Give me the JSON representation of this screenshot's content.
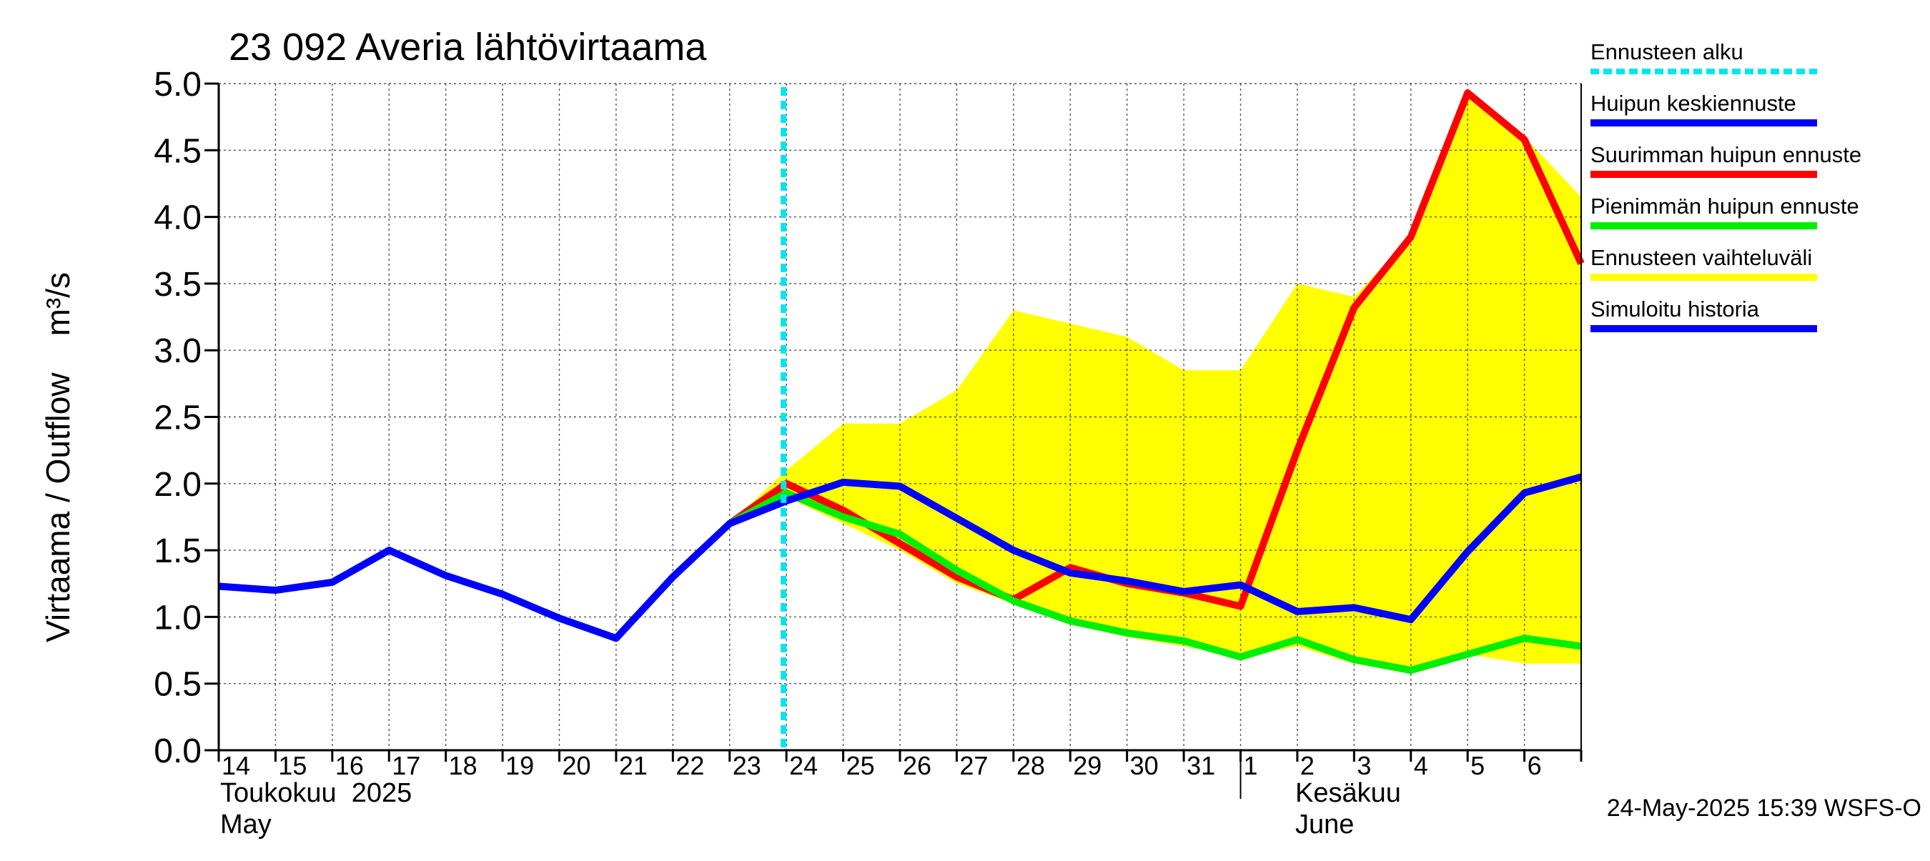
{
  "chart_data": {
    "type": "line",
    "title": "23 092 Averia lähtövirtaama",
    "ylabel": "Virtaama / Outflow    m³/s",
    "ylim": [
      0,
      5
    ],
    "yticks": [
      "0.0",
      "0.5",
      "1.0",
      "1.5",
      "2.0",
      "2.5",
      "3.0",
      "3.5",
      "4.0",
      "4.5",
      "5.0"
    ],
    "x_start": 0,
    "x_end": 24,
    "day_labels": [
      "14",
      "15",
      "16",
      "17",
      "18",
      "19",
      "20",
      "21",
      "22",
      "23",
      "24",
      "25",
      "26",
      "27",
      "28",
      "29",
      "30",
      "31",
      "1",
      "2",
      "3",
      "4",
      "5",
      "6"
    ],
    "month_labels": {
      "may_fi": "Toukokuu  2025",
      "may_en": "May",
      "june_fi": "Kesäkuu",
      "june_en": "June"
    },
    "month_boundary_x": 18,
    "forecast_start_x": 10,
    "grid": true,
    "series": [
      {
        "name": "Ennusteen vaihteluväli",
        "kind": "band",
        "color": "#ffff00",
        "x": [
          9,
          10,
          11,
          12,
          13,
          14,
          15,
          16,
          17,
          18,
          19,
          20,
          21,
          22,
          23,
          24
        ],
        "upper": [
          1.7,
          2.1,
          2.45,
          2.45,
          2.7,
          3.3,
          3.2,
          3.1,
          2.85,
          2.85,
          3.5,
          3.4,
          3.85,
          4.95,
          4.6,
          4.15
        ],
        "lower": [
          1.7,
          1.9,
          1.7,
          1.5,
          1.25,
          1.1,
          0.95,
          0.85,
          0.78,
          0.7,
          0.78,
          0.65,
          0.58,
          0.72,
          0.65,
          0.65
        ]
      },
      {
        "name": "Suurimman huipun ennuste",
        "kind": "line",
        "color": "#ff0000",
        "x": [
          9,
          10,
          11,
          12,
          13,
          14,
          15,
          16,
          17,
          18,
          19,
          20,
          21,
          22,
          23,
          24
        ],
        "values": [
          1.7,
          2.0,
          1.8,
          1.55,
          1.3,
          1.13,
          1.37,
          1.25,
          1.18,
          1.08,
          2.25,
          3.32,
          3.85,
          4.93,
          4.58,
          3.65
        ]
      },
      {
        "name": "Pienimmän huipun ennuste",
        "kind": "line",
        "color": "#00ee00",
        "x": [
          9,
          10,
          11,
          12,
          13,
          14,
          15,
          16,
          17,
          18,
          19,
          20,
          21,
          22,
          23,
          24
        ],
        "values": [
          1.7,
          1.93,
          1.75,
          1.62,
          1.35,
          1.12,
          0.97,
          0.88,
          0.82,
          0.7,
          0.83,
          0.68,
          0.6,
          0.72,
          0.84,
          0.78
        ]
      },
      {
        "name": "Huipun keskiennuste",
        "kind": "line",
        "color": "#0000ff",
        "x": [
          10,
          11,
          12,
          13,
          14,
          15,
          16,
          17,
          18,
          19,
          20,
          21,
          22,
          23,
          24
        ],
        "values": [
          1.87,
          2.01,
          1.98,
          1.74,
          1.5,
          1.33,
          1.27,
          1.19,
          1.24,
          1.04,
          1.07,
          0.98,
          1.49,
          1.93,
          2.05
        ]
      },
      {
        "name": "Simuloitu historia",
        "kind": "line",
        "color": "#0000ff",
        "x": [
          0,
          1,
          2,
          3,
          4,
          5,
          6,
          7,
          8,
          9,
          10
        ],
        "values": [
          1.23,
          1.2,
          1.26,
          1.5,
          1.31,
          1.17,
          0.99,
          0.84,
          1.3,
          1.7,
          1.87
        ]
      }
    ],
    "legend": [
      {
        "label": "Ennusteen alku",
        "color": "#00e5ee",
        "style": "dotted"
      },
      {
        "label": "Huipun keskiennuste",
        "color": "#0000ff",
        "style": "solid"
      },
      {
        "label": "Suurimman huipun ennuste",
        "color": "#ff0000",
        "style": "solid"
      },
      {
        "label": "Pienimmän huipun ennuste",
        "color": "#00ee00",
        "style": "solid"
      },
      {
        "label": "Ennusteen vaihteluväli",
        "color": "#ffff00",
        "style": "solid"
      },
      {
        "label": "Simuloitu historia",
        "color": "#0000ff",
        "style": "solid"
      }
    ],
    "legend_position": "right",
    "footer": "24-May-2025 15:39 WSFS-O"
  }
}
